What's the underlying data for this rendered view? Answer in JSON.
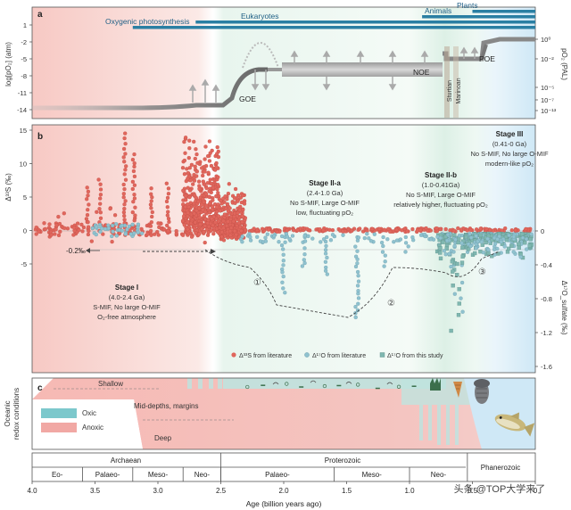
{
  "panel_a": {
    "letter": "a",
    "y_left_label": "log[pO₂] (atm)",
    "y_left_ticks": [
      "1",
      "-2",
      "-5",
      "-8",
      "-11",
      "-14"
    ],
    "y_right_label": "pO₂ (PAL)",
    "y_right_ticks": [
      "10⁰",
      "10⁻²",
      "10⁻⁵",
      "10⁻⁷",
      "10⁻¹³"
    ],
    "bars": [
      {
        "label": "Oxygenic photosynthesis",
        "start_ga": 3.2
      },
      {
        "label": "Eukaryotes",
        "start_ga": 2.7
      },
      {
        "label": "Animals",
        "start_ga": 0.9
      },
      {
        "label": "Plants",
        "start_ga": 0.5
      }
    ],
    "events": [
      "GOE",
      "NOE",
      "POE",
      "Sturtian",
      "Marinoan"
    ]
  },
  "panel_b": {
    "letter": "b",
    "y_left_label": "Δ³³S (‰)",
    "y_left_ticks": [
      "15",
      "10",
      "5",
      "0",
      "-5"
    ],
    "y_right_label": "Δ¹⁷O_sulfate (‰)",
    "y_right_ticks": [
      "0",
      "-0.4",
      "-0.8",
      "-1.2",
      "-1.6"
    ],
    "offset_label": "-0.2‰",
    "stages": [
      {
        "title": "Stage I",
        "lines": [
          "(4.0-2.4 Ga)",
          "S-MIF, No large O-MIF",
          "O₂-free atmosphere"
        ]
      },
      {
        "title": "Stage II-a",
        "lines": [
          "(2.4-1.0 Ga)",
          "No S-MIF, Large O-MIF",
          "low, fluctuating pO₂"
        ]
      },
      {
        "title": "Stage II-b",
        "lines": [
          "(1.0-0.41Ga)",
          "No S-MIF, Large O-MIF",
          "relatively higher, fluctuating pO₂"
        ]
      },
      {
        "title": "Stage III",
        "lines": [
          "(0.41-0 Ga)",
          "No S-MIF, No large O-MIF",
          "modern-like pO₂"
        ]
      }
    ],
    "circled_numbers": [
      "①",
      "②",
      "③"
    ],
    "legend": [
      {
        "label": "Δ³³S from literature",
        "color": "#e0665c"
      },
      {
        "label": "Δ¹⁷O from literature",
        "color": "#8fc2cf"
      },
      {
        "label": "Δ¹⁷O from this study",
        "color": "#7fb7b0"
      }
    ]
  },
  "panel_c": {
    "letter": "c",
    "y_label": "Oceanic redox conditions",
    "zones": [
      "Shallow",
      "Mid-depths, margins",
      "Deep"
    ],
    "legend": [
      {
        "label": "Oxic",
        "color": "#7cc8cc"
      },
      {
        "label": "Anoxic",
        "color": "#f1a8a4"
      }
    ]
  },
  "eons": [
    "Archaean",
    "Proterozoic",
    "Phanerozoic"
  ],
  "eras": [
    "Eo-",
    "Palaeo-",
    "Meso-",
    "Neo-",
    "Palaeo-",
    "Meso-",
    "Neo-"
  ],
  "x_ticks": [
    "4.0",
    "3.5",
    "3.0",
    "2.5",
    "2.0",
    "1.5",
    "1.0",
    "0.5",
    "0"
  ],
  "x_label": "Age (billion years ago)",
  "watermark": "头条 @TOP大学来了"
}
